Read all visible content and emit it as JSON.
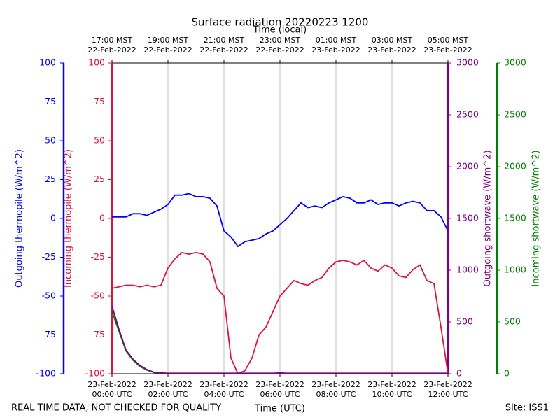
{
  "chart_data": {
    "type": "line",
    "title": "Surface radiation 20220223 1200",
    "xlabel": "Time (UTC)",
    "x2label": "Time (local)",
    "note": "REAL TIME DATA, NOT CHECKED FOR QUALITY",
    "site": "Site: ISS1",
    "grid": true,
    "xlim": [
      0,
      12
    ],
    "xticks": [
      {
        "value": 0,
        "label": [
          "23-Feb-2022",
          "00:00 UTC"
        ]
      },
      {
        "value": 2,
        "label": [
          "23-Feb-2022",
          "02:00 UTC"
        ]
      },
      {
        "value": 4,
        "label": [
          "23-Feb-2022",
          "04:00 UTC"
        ]
      },
      {
        "value": 6,
        "label": [
          "23-Feb-2022",
          "06:00 UTC"
        ]
      },
      {
        "value": 8,
        "label": [
          "23-Feb-2022",
          "08:00 UTC"
        ]
      },
      {
        "value": 10,
        "label": [
          "23-Feb-2022",
          "10:00 UTC"
        ]
      },
      {
        "value": 12,
        "label": [
          "23-Feb-2022",
          "12:00 UTC"
        ]
      }
    ],
    "x2ticks": [
      {
        "value": 0,
        "label": [
          "17:00 MST",
          "22-Feb-2022"
        ]
      },
      {
        "value": 2,
        "label": [
          "19:00 MST",
          "22-Feb-2022"
        ]
      },
      {
        "value": 4,
        "label": [
          "21:00 MST",
          "22-Feb-2022"
        ]
      },
      {
        "value": 6,
        "label": [
          "23:00 MST",
          "22-Feb-2022"
        ]
      },
      {
        "value": 8,
        "label": [
          "01:00 MST",
          "23-Feb-2022"
        ]
      },
      {
        "value": 10,
        "label": [
          "03:00 MST",
          "23-Feb-2022"
        ]
      },
      {
        "value": 12,
        "label": [
          "05:00 MST",
          "23-Feb-2022"
        ]
      }
    ],
    "yaxes": [
      {
        "label": "Outgoing thermopile (W/m^2)",
        "color": "#0000ff",
        "lim": [
          -100,
          100
        ],
        "ticks": [
          -100,
          -75,
          -50,
          -25,
          0,
          25,
          50,
          75,
          100
        ]
      },
      {
        "label": "Incoming thermopile (W/m^2)",
        "color": "#dc143c",
        "lim": [
          -100,
          100
        ],
        "ticks": [
          -100,
          -75,
          -50,
          -25,
          0,
          25,
          50,
          75,
          100
        ]
      },
      {
        "label": "Outgoing shortwave (W/m^2)",
        "color": "#800080",
        "lim": [
          0,
          3000
        ],
        "ticks": [
          0,
          500,
          1000,
          1500,
          2000,
          2500,
          3000
        ]
      },
      {
        "label": "Incoming shortwave (W/m^2)",
        "color": "#008000",
        "lim": [
          0,
          3000
        ],
        "ticks": [
          0,
          500,
          1000,
          1500,
          2000,
          2500,
          3000
        ]
      }
    ],
    "x": [
      0,
      0.25,
      0.5,
      0.75,
      1,
      1.25,
      1.5,
      1.75,
      2,
      2.25,
      2.5,
      2.75,
      3,
      3.25,
      3.5,
      3.75,
      4,
      4.25,
      4.5,
      4.75,
      5,
      5.25,
      5.5,
      5.75,
      6,
      6.25,
      6.5,
      6.75,
      7,
      7.25,
      7.5,
      7.75,
      8,
      8.25,
      8.5,
      8.75,
      9,
      9.25,
      9.5,
      9.75,
      10,
      10.25,
      10.5,
      10.75,
      11,
      11.25,
      11.5,
      11.75,
      12
    ],
    "series": [
      {
        "axis": 0,
        "color": "#0000ff",
        "values": [
          1,
          1,
          1,
          3,
          3,
          2,
          4,
          6,
          9,
          15,
          15,
          16,
          14,
          14,
          13,
          8,
          -8,
          -12,
          -18,
          -15,
          -14,
          -13,
          -10,
          -8,
          -4,
          0,
          5,
          10,
          7,
          8,
          7,
          10,
          12,
          14,
          13,
          10,
          10,
          12,
          9,
          10,
          10,
          8,
          10,
          11,
          10,
          5,
          5,
          1,
          -8
        ]
      },
      {
        "axis": 1,
        "color": "#dc143c",
        "values": [
          -45,
          -44,
          -43,
          -43,
          -44,
          -43,
          -44,
          -43,
          -32,
          -26,
          -22,
          -23,
          -22,
          -23,
          -28,
          -45,
          -50,
          -90,
          -100,
          -98,
          -90,
          -75,
          -70,
          -60,
          -50,
          -45,
          -40,
          -42,
          -43,
          -40,
          -38,
          -32,
          -28,
          -27,
          -28,
          -30,
          -27,
          -32,
          -34,
          -30,
          -32,
          -37,
          -38,
          -33,
          -30,
          -40,
          -42,
          -70,
          -100
        ]
      },
      {
        "axis": 3,
        "color": "#008000",
        "values": [
          600,
          410,
          220,
          130,
          70,
          35,
          12,
          5,
          3,
          3,
          3,
          3,
          3,
          3,
          3,
          3,
          3,
          3,
          3,
          3,
          3,
          3,
          3,
          3,
          3,
          3,
          3,
          3,
          3,
          3,
          3,
          3,
          3,
          3,
          3,
          3,
          3,
          3,
          3,
          3,
          3,
          3,
          3,
          3,
          3,
          3,
          3,
          3,
          3
        ]
      },
      {
        "axis": 2,
        "color": "#800080",
        "values": [
          655,
          430,
          230,
          140,
          80,
          40,
          15,
          8,
          5,
          5,
          5,
          5,
          5,
          5,
          5,
          5,
          5,
          5,
          5,
          5,
          5,
          5,
          5,
          5,
          8,
          5,
          5,
          5,
          5,
          5,
          5,
          5,
          5,
          5,
          5,
          5,
          5,
          5,
          5,
          5,
          5,
          5,
          5,
          5,
          5,
          5,
          5,
          5,
          5
        ]
      }
    ]
  }
}
